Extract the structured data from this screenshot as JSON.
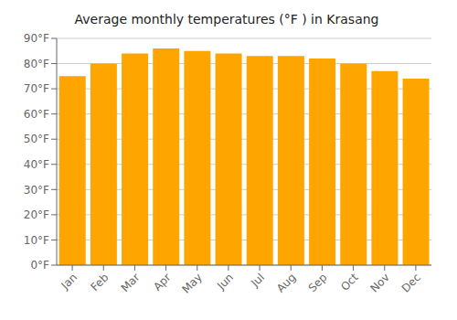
{
  "chart_data": {
    "type": "bar",
    "title": "Average monthly temperatures (°F ) in Krasang",
    "categories": [
      "Jan",
      "Feb",
      "Mar",
      "Apr",
      "May",
      "Jun",
      "Jul",
      "Aug",
      "Sep",
      "Oct",
      "Nov",
      "Dec"
    ],
    "values": [
      75,
      80,
      84,
      86,
      85,
      84,
      83,
      83,
      82,
      80,
      77,
      74
    ],
    "color": "#FFA500",
    "ylim": [
      0,
      90
    ],
    "yticks": [
      {
        "value": 0,
        "label": "0°F"
      },
      {
        "value": 10,
        "label": "10°F"
      },
      {
        "value": 20,
        "label": "20°F"
      },
      {
        "value": 30,
        "label": "30°F"
      },
      {
        "value": 40,
        "label": "40°F"
      },
      {
        "value": 50,
        "label": "50°F"
      },
      {
        "value": 60,
        "label": "60°F"
      },
      {
        "value": 70,
        "label": "70°F"
      },
      {
        "value": 80,
        "label": "80°F"
      },
      {
        "value": 90,
        "label": "90°F"
      }
    ],
    "grid": true
  }
}
